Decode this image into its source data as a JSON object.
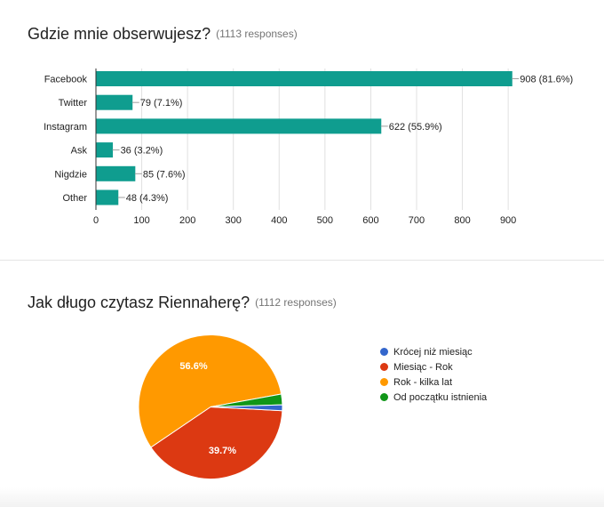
{
  "colors": {
    "bar": "#0f9d8f",
    "grid": "#e0e0e0",
    "axis": "#333333",
    "label": "#212121"
  },
  "questions": [
    {
      "title": "Gdzie mnie obserwujesz?",
      "responses": "(1113 responses)"
    },
    {
      "title": "Jak długo czytasz Riennaherę?",
      "responses": "(1112 responses)"
    }
  ],
  "chart_data": [
    {
      "type": "bar",
      "orientation": "horizontal",
      "categories": [
        "Facebook",
        "Twitter",
        "Instagram",
        "Ask",
        "Nigdzie",
        "Other"
      ],
      "values": [
        908,
        79,
        622,
        36,
        85,
        48
      ],
      "data_labels": [
        "908 (81.6%)",
        "79 (7.1%)",
        "622 (55.9%)",
        "36 (3.2%)",
        "85 (7.6%)",
        "48 (4.3%)"
      ],
      "xticks": [
        0,
        100,
        200,
        300,
        400,
        500,
        600,
        700,
        800,
        900
      ],
      "xlim": [
        0,
        1000
      ],
      "grid": true,
      "color": "#0f9d8f"
    },
    {
      "type": "pie",
      "labels": [
        "Krócej niż miesiąc",
        "Miesiąc - Rok",
        "Rok - kilka lat",
        "Od początku istnienia"
      ],
      "values": [
        1.3,
        39.7,
        56.6,
        2.4
      ],
      "slice_labels": [
        "",
        "39.7%",
        "56.6%",
        ""
      ],
      "colors": [
        "#3366cc",
        "#dc3912",
        "#ff9900",
        "#109618"
      ],
      "legend_position": "right"
    }
  ]
}
